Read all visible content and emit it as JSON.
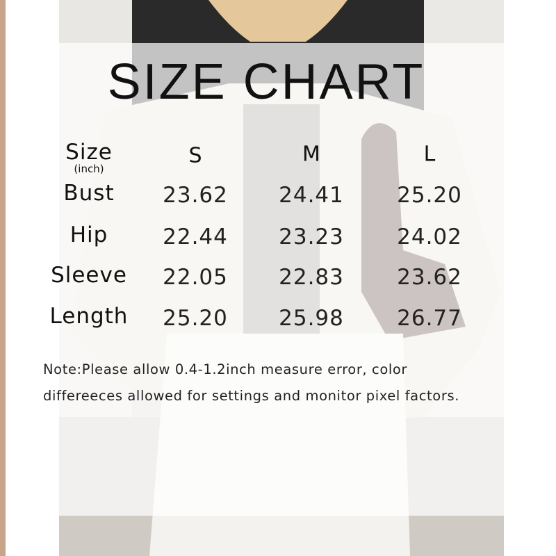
{
  "title": "SIZE CHART",
  "table": {
    "header": [
      "Size",
      "S",
      "M",
      "L"
    ],
    "unit": "(inch)",
    "rows": [
      [
        "Bust",
        "23.62",
        "24.41",
        "25.20"
      ],
      [
        "Hip",
        "22.44",
        "23.23",
        "24.02"
      ],
      [
        "Sleeve",
        "22.05",
        "22.83",
        "23.62"
      ],
      [
        "Length",
        "25.20",
        "25.98",
        "26.77"
      ]
    ]
  },
  "note": [
    "Note:Please allow 0.4-1.2inch measure error, color",
    "differeeces allowed for settings and monitor pixel factors."
  ]
}
